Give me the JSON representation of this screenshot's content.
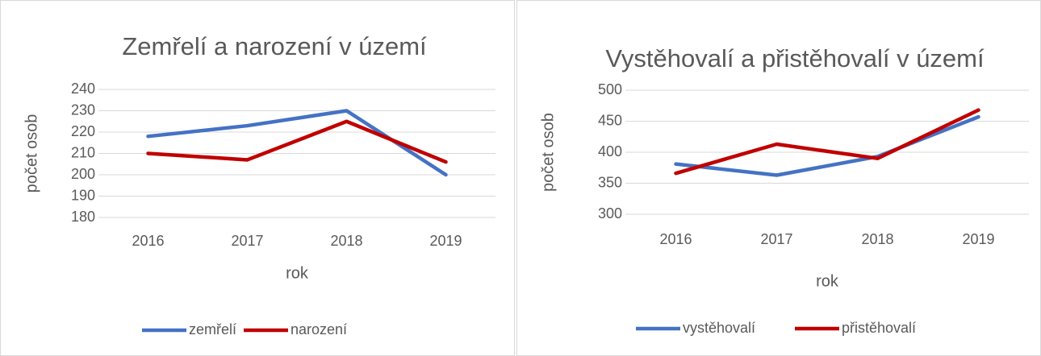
{
  "chart_data": [
    {
      "type": "line",
      "title": "Zemřelí a narození v území",
      "ylabel": "počet osob",
      "xlabel": "rok",
      "categories": [
        "2016",
        "2017",
        "2018",
        "2019"
      ],
      "ylim": [
        180,
        240
      ],
      "yticks": [
        180,
        190,
        200,
        210,
        220,
        230,
        240
      ],
      "grid": true,
      "legend": "bottom",
      "series": [
        {
          "name": "zemřelí",
          "color": "#4472c4",
          "values": [
            218,
            223,
            230,
            200
          ]
        },
        {
          "name": "narození",
          "color": "#c00000",
          "values": [
            210,
            207,
            225,
            206
          ]
        }
      ]
    },
    {
      "type": "line",
      "title": "Vystěhovalí a přistěhovalí v území",
      "ylabel": "počet osob",
      "xlabel": "rok",
      "categories": [
        "2016",
        "2017",
        "2018",
        "2019"
      ],
      "ylim": [
        300,
        500
      ],
      "yticks": [
        300,
        350,
        400,
        450,
        500
      ],
      "grid": true,
      "legend": "bottom",
      "series": [
        {
          "name": "vystěhovalí",
          "color": "#4472c4",
          "values": [
            381,
            363,
            393,
            457
          ]
        },
        {
          "name": "přistěhovalí",
          "color": "#c00000",
          "values": [
            366,
            413,
            390,
            468
          ]
        }
      ]
    }
  ]
}
